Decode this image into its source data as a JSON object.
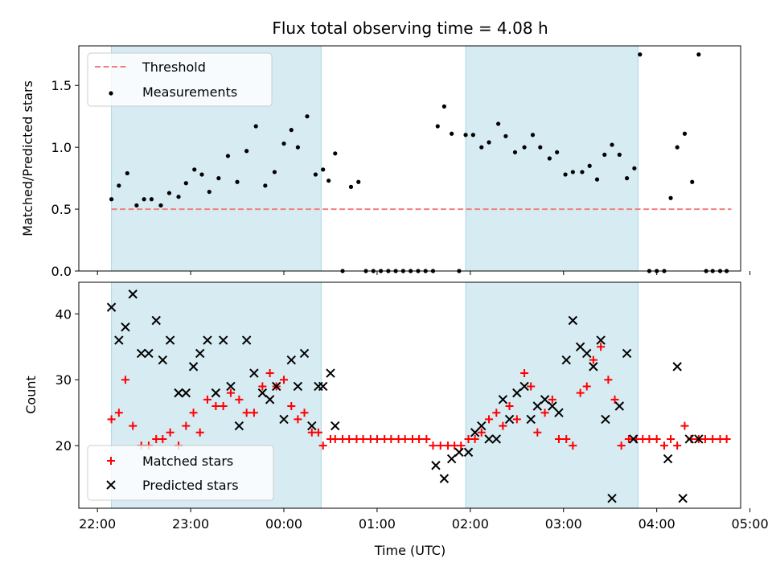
{
  "chart_data": [
    {
      "type": "scatter",
      "title": "Flux total observing time = 4.08 h",
      "xlabel": "",
      "ylabel": "Matched/Predicted stars",
      "ylim": [
        0,
        1.82
      ],
      "yticks": [
        "0.0",
        "0.5",
        "1.0",
        "1.5"
      ],
      "ytick_values": [
        0,
        0.5,
        1.0,
        1.5
      ],
      "xlim": [
        -0.2,
        6.9
      ],
      "grid": false,
      "legend": "top-left",
      "shaded_spans": [
        [
          0.15,
          2.4
        ],
        [
          3.95,
          5.8
        ]
      ],
      "threshold": {
        "name": "Threshold",
        "value": 0.5,
        "x": [
          0.15,
          6.8
        ],
        "color": "#f08080",
        "style": "dashed"
      },
      "series": [
        {
          "name": "Measurements",
          "color": "#000000",
          "marker": "dot",
          "x": [
            0.15,
            0.23,
            0.32,
            0.42,
            0.5,
            0.58,
            0.68,
            0.77,
            0.87,
            0.95,
            1.04,
            1.12,
            1.2,
            1.3,
            1.4,
            1.5,
            1.6,
            1.7,
            1.8,
            1.9,
            2.0,
            2.08,
            2.15,
            2.25,
            2.34,
            2.42,
            2.48,
            2.55,
            2.63,
            2.72,
            2.8,
            2.88,
            2.96,
            3.04,
            3.12,
            3.2,
            3.28,
            3.36,
            3.44,
            3.52,
            3.6,
            3.65,
            3.72,
            3.8,
            3.88,
            3.95,
            4.03,
            4.12,
            4.2,
            4.3,
            4.38,
            4.48,
            4.58,
            4.67,
            4.75,
            4.85,
            4.93,
            5.02,
            5.1,
            5.2,
            5.28,
            5.36,
            5.44,
            5.52,
            5.6,
            5.68,
            5.76,
            5.82,
            5.92,
            6.0,
            6.08,
            6.15,
            6.22,
            6.3,
            6.38,
            6.45,
            6.53,
            6.6,
            6.68,
            6.75
          ],
          "y": [
            0.58,
            0.69,
            0.79,
            0.53,
            0.58,
            0.58,
            0.53,
            0.63,
            0.6,
            0.71,
            0.82,
            0.78,
            0.64,
            0.75,
            0.93,
            0.72,
            0.97,
            1.17,
            0.69,
            0.8,
            1.03,
            1.14,
            1.0,
            1.25,
            0.78,
            0.82,
            0.73,
            0.95,
            0.0,
            0.68,
            0.72,
            0.0,
            0.0,
            0.0,
            0.0,
            0.0,
            0.0,
            0.0,
            0.0,
            0.0,
            0.0,
            1.17,
            1.33,
            1.11,
            0.0,
            1.1,
            1.1,
            1.0,
            1.04,
            1.19,
            1.09,
            0.96,
            1.0,
            1.1,
            1.0,
            0.91,
            0.96,
            0.78,
            0.8,
            0.8,
            0.85,
            0.74,
            0.94,
            1.02,
            0.94,
            0.75,
            0.83,
            1.75,
            0.0,
            0.0,
            0.0,
            0.59,
            1.0,
            1.11,
            0.72,
            1.75,
            0.0,
            0.0,
            0.0,
            0.0
          ]
        }
      ]
    },
    {
      "type": "scatter",
      "title": "",
      "xlabel": "Time (UTC)",
      "ylabel": "Count",
      "ylim": [
        10.5,
        44.8
      ],
      "yticks": [
        "20",
        "30",
        "40"
      ],
      "ytick_values": [
        20,
        30,
        40
      ],
      "xlim": [
        -0.2,
        6.9
      ],
      "xticks": [
        "22:00",
        "23:00",
        "00:00",
        "01:00",
        "02:00",
        "03:00",
        "04:00",
        "05:00"
      ],
      "xtick_values": [
        0,
        1,
        2,
        3,
        4,
        5,
        6,
        7
      ],
      "grid": false,
      "legend": "bottom-left",
      "shaded_spans": [
        [
          0.15,
          2.4
        ],
        [
          3.95,
          5.8
        ]
      ],
      "series": [
        {
          "name": "Matched stars",
          "color": "#ff0000",
          "marker": "plus",
          "x": [
            0.15,
            0.23,
            0.3,
            0.38,
            0.47,
            0.55,
            0.63,
            0.7,
            0.78,
            0.87,
            0.95,
            1.03,
            1.1,
            1.18,
            1.27,
            1.35,
            1.43,
            1.52,
            1.6,
            1.68,
            1.77,
            1.85,
            1.92,
            2.0,
            2.08,
            2.15,
            2.22,
            2.3,
            2.37,
            2.42,
            2.5,
            2.55,
            2.63,
            2.7,
            2.78,
            2.85,
            2.93,
            3.0,
            3.08,
            3.15,
            3.23,
            3.3,
            3.38,
            3.45,
            3.53,
            3.6,
            3.68,
            3.76,
            3.83,
            3.9,
            3.98,
            4.05,
            4.12,
            4.2,
            4.28,
            4.35,
            4.42,
            4.5,
            4.58,
            4.65,
            4.72,
            4.8,
            4.88,
            4.95,
            5.03,
            5.1,
            5.18,
            5.25,
            5.32,
            5.4,
            5.48,
            5.55,
            5.62,
            5.7,
            5.78,
            5.85,
            5.92,
            6.0,
            6.08,
            6.15,
            6.22,
            6.3,
            6.37,
            6.45,
            6.52,
            6.6,
            6.68,
            6.75
          ],
          "y": [
            24,
            25,
            30,
            23,
            20,
            20,
            21,
            21,
            22,
            20,
            23,
            25,
            22,
            27,
            26,
            26,
            28,
            27,
            25,
            25,
            29,
            31,
            29,
            30,
            26,
            24,
            25,
            22,
            22,
            20,
            21,
            21,
            21,
            21,
            21,
            21,
            21,
            21,
            21,
            21,
            21,
            21,
            21,
            21,
            21,
            20,
            20,
            20,
            20,
            20,
            21,
            21,
            22,
            24,
            25,
            23,
            26,
            24,
            31,
            29,
            22,
            25,
            27,
            21,
            21,
            20,
            28,
            29,
            33,
            35,
            30,
            27,
            20,
            21,
            21,
            21,
            21,
            21,
            20,
            21,
            20,
            23,
            21,
            21,
            21,
            21,
            21,
            21
          ]
        },
        {
          "name": "Predicted stars",
          "color": "#000000",
          "marker": "x",
          "x": [
            0.15,
            0.23,
            0.3,
            0.38,
            0.47,
            0.55,
            0.63,
            0.7,
            0.78,
            0.87,
            0.95,
            1.03,
            1.1,
            1.18,
            1.27,
            1.35,
            1.43,
            1.52,
            1.6,
            1.68,
            1.77,
            1.85,
            1.92,
            2.0,
            2.08,
            2.15,
            2.22,
            2.3,
            2.37,
            2.42,
            2.5,
            2.55,
            3.63,
            3.72,
            3.8,
            3.88,
            3.98,
            4.05,
            4.12,
            4.2,
            4.28,
            4.35,
            4.42,
            4.5,
            4.58,
            4.65,
            4.72,
            4.8,
            4.88,
            4.95,
            5.03,
            5.1,
            5.18,
            5.25,
            5.32,
            5.4,
            5.45,
            5.52,
            5.6,
            5.68,
            5.75,
            6.12,
            6.22,
            6.28,
            6.35,
            6.45
          ],
          "y": [
            41,
            36,
            38,
            43,
            34,
            34,
            39,
            33,
            36,
            28,
            28,
            32,
            34,
            36,
            28,
            36,
            29,
            23,
            36,
            31,
            28,
            27,
            29,
            24,
            33,
            29,
            34,
            23,
            29,
            29,
            31,
            23,
            17,
            15,
            18,
            19,
            19,
            22,
            23,
            21,
            21,
            27,
            24,
            28,
            29,
            24,
            26,
            27,
            26,
            25,
            33,
            39,
            35,
            34,
            32,
            36,
            24,
            12,
            26,
            34,
            21,
            18,
            32,
            12,
            21,
            21
          ]
        }
      ]
    }
  ]
}
